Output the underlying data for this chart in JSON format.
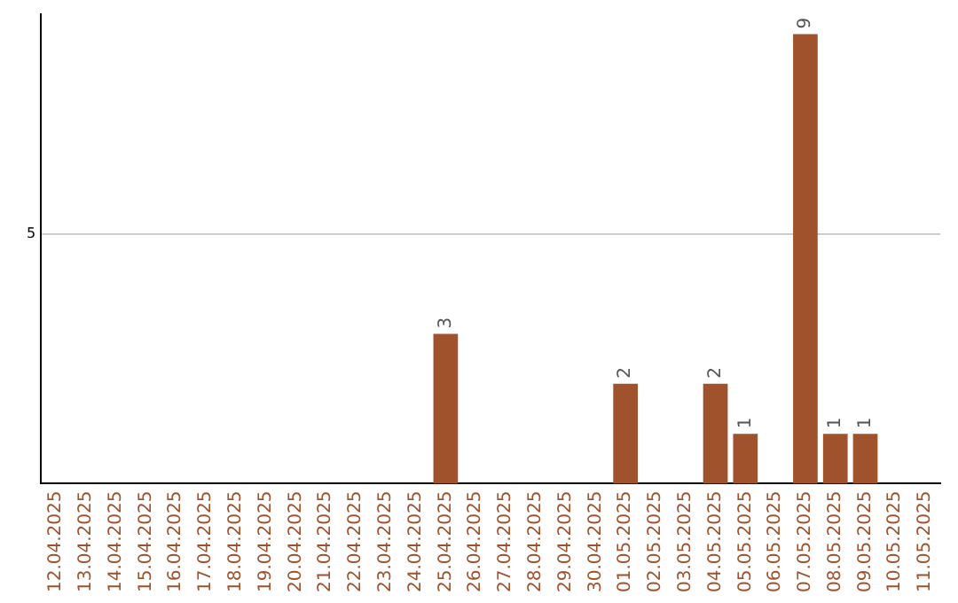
{
  "chart_data": {
    "type": "bar",
    "categories": [
      "12.04.2025",
      "13.04.2025",
      "14.04.2025",
      "15.04.2025",
      "16.04.2025",
      "17.04.2025",
      "18.04.2025",
      "19.04.2025",
      "20.04.2025",
      "21.04.2025",
      "22.04.2025",
      "23.04.2025",
      "24.04.2025",
      "25.04.2025",
      "26.04.2025",
      "27.04.2025",
      "28.04.2025",
      "29.04.2025",
      "30.04.2025",
      "01.05.2025",
      "02.05.2025",
      "03.05.2025",
      "04.05.2025",
      "05.05.2025",
      "06.05.2025",
      "07.05.2025",
      "08.05.2025",
      "09.05.2025",
      "10.05.2025",
      "11.05.2025"
    ],
    "values": [
      null,
      null,
      null,
      null,
      null,
      null,
      null,
      null,
      null,
      null,
      null,
      null,
      null,
      3,
      null,
      null,
      null,
      null,
      null,
      2,
      null,
      null,
      2,
      1,
      null,
      9,
      1,
      1,
      null,
      null
    ],
    "data_labels": true,
    "color": "#a0522d",
    "ylim": [
      0,
      9.4
    ],
    "yticks": [
      5
    ],
    "grid": "y",
    "legend": false
  }
}
